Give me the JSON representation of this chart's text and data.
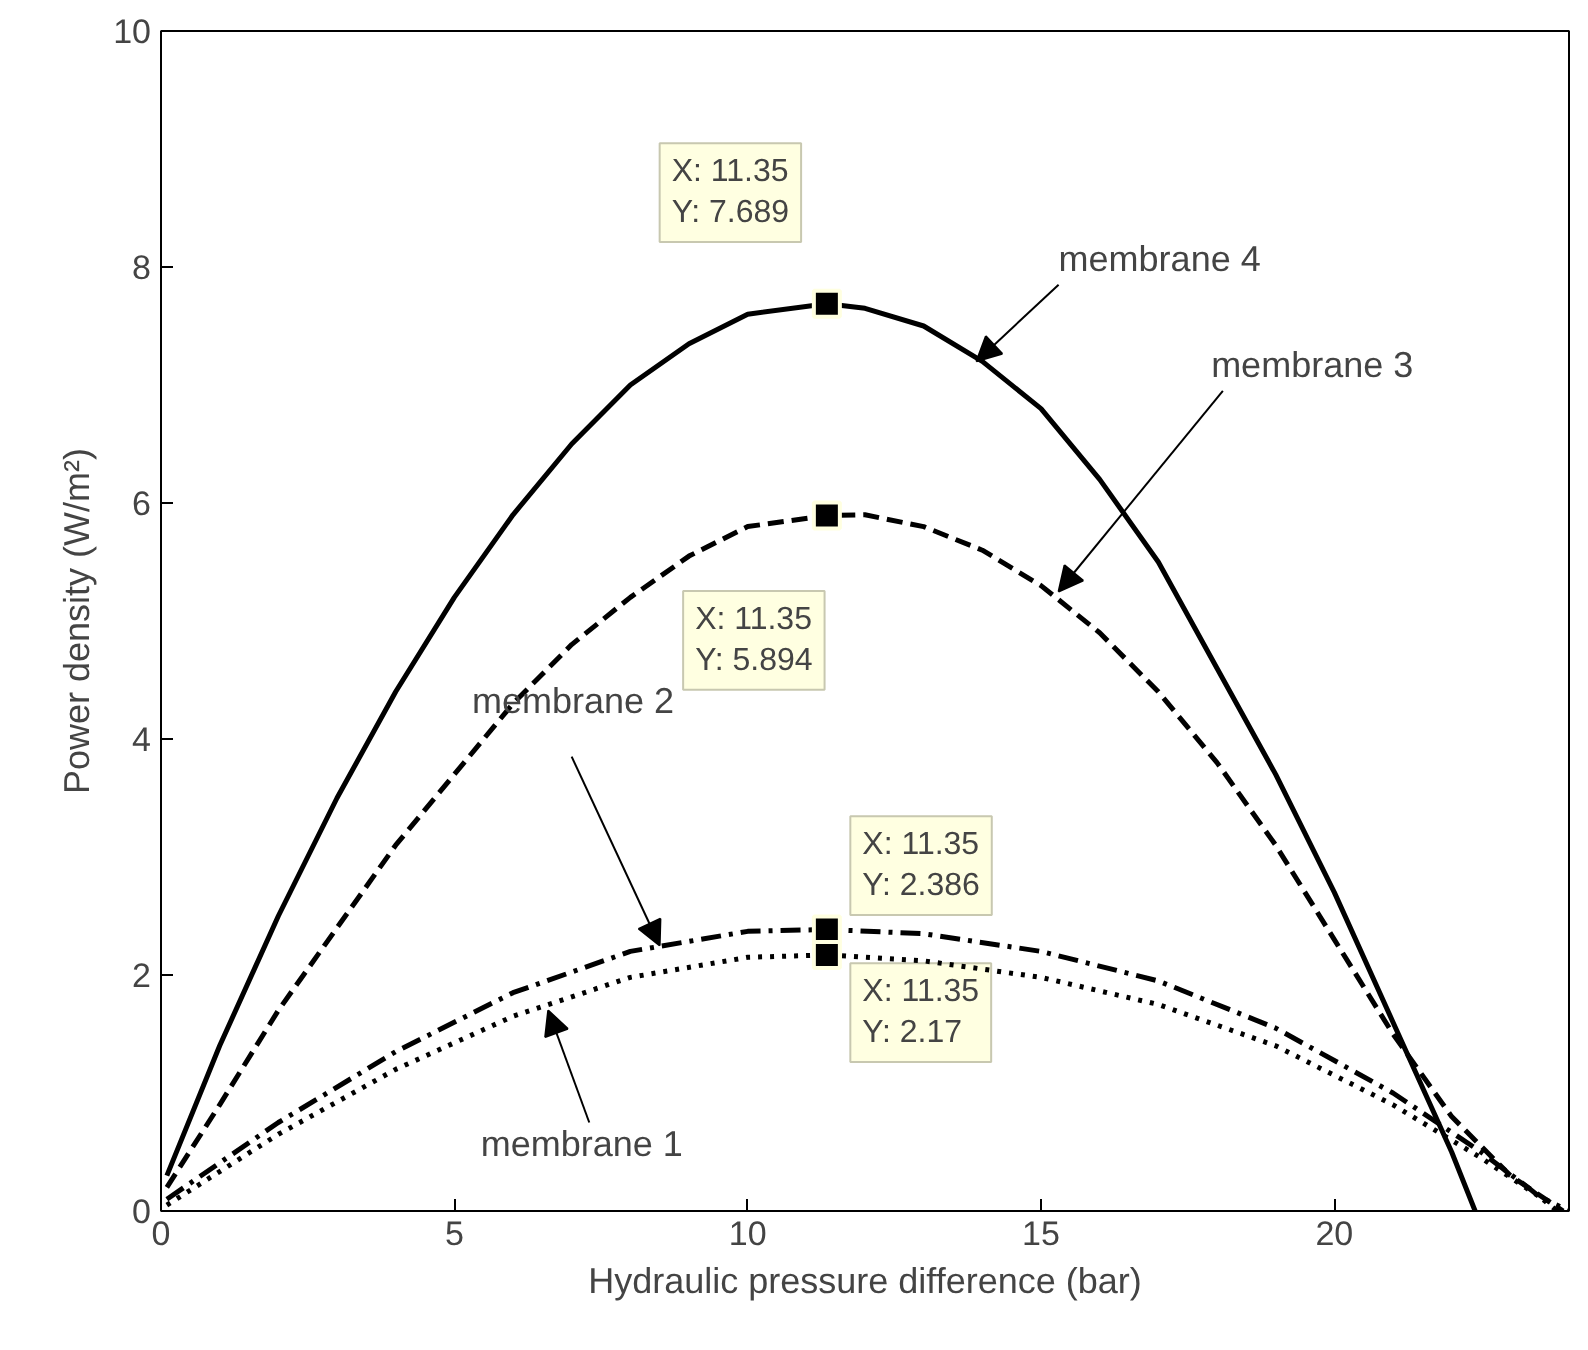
{
  "chart_data": {
    "type": "line",
    "xlabel": "Hydraulic pressure difference (bar)",
    "ylabel": "Power density (W/m²)",
    "xlim": [
      0,
      24
    ],
    "ylim": [
      0,
      10
    ],
    "xticks": [
      0,
      5,
      10,
      15,
      20
    ],
    "yticks": [
      0,
      2,
      4,
      6,
      8,
      10
    ],
    "grid": false,
    "marker": "none",
    "series": [
      {
        "name": "membrane 4",
        "color": "#000000",
        "line_style": "solid",
        "x": [
          0.1,
          1,
          2,
          3,
          4,
          5,
          6,
          7,
          8,
          9,
          10,
          11.35,
          12,
          13,
          14,
          15,
          16,
          17,
          18,
          19,
          20,
          21,
          22,
          22.4
        ],
        "values": [
          0.3,
          1.4,
          2.5,
          3.5,
          4.4,
          5.2,
          5.9,
          6.5,
          7.0,
          7.35,
          7.6,
          7.689,
          7.65,
          7.5,
          7.2,
          6.8,
          6.2,
          5.5,
          4.6,
          3.7,
          2.7,
          1.6,
          0.5,
          0
        ],
        "value_labels": [
          null,
          null,
          null,
          null,
          null,
          null,
          null,
          null,
          null,
          null,
          null,
          "X: 11.35\nY: 7.689",
          null,
          null,
          null,
          null,
          null,
          null,
          null,
          null,
          null,
          null,
          null,
          null
        ]
      },
      {
        "name": "membrane 3",
        "color": "#000000",
        "line_style": "dashed",
        "x": [
          0.1,
          1,
          2,
          3,
          4,
          5,
          6,
          7,
          8,
          9,
          10,
          11.35,
          12,
          13,
          14,
          15,
          16,
          17,
          18,
          19,
          20,
          21,
          22,
          23,
          23.9
        ],
        "values": [
          0.2,
          0.9,
          1.7,
          2.4,
          3.1,
          3.7,
          4.3,
          4.8,
          5.2,
          5.55,
          5.8,
          5.894,
          5.9,
          5.8,
          5.6,
          5.3,
          4.9,
          4.4,
          3.8,
          3.1,
          2.3,
          1.5,
          0.8,
          0.3,
          0
        ],
        "value_labels": [
          null,
          null,
          null,
          null,
          null,
          null,
          null,
          null,
          null,
          null,
          null,
          "X: 11.35\nY: 5.894",
          null,
          null,
          null,
          null,
          null,
          null,
          null,
          null,
          null,
          null,
          null,
          null,
          null
        ]
      },
      {
        "name": "membrane 2",
        "color": "#000000",
        "line_style": "dashdot",
        "x": [
          0.1,
          2,
          4,
          6,
          8,
          10,
          11.35,
          13,
          15,
          17,
          19,
          21,
          22.5,
          23.3,
          23.8
        ],
        "values": [
          0.1,
          0.75,
          1.35,
          1.85,
          2.2,
          2.37,
          2.386,
          2.35,
          2.2,
          1.95,
          1.55,
          1.0,
          0.5,
          0.2,
          0
        ],
        "value_labels": [
          null,
          null,
          null,
          null,
          null,
          null,
          "X: 11.35\nY: 2.386",
          null,
          null,
          null,
          null,
          null,
          null,
          null,
          null
        ]
      },
      {
        "name": "membrane 1",
        "color": "#000000",
        "line_style": "dotted",
        "x": [
          0.1,
          2,
          4,
          6,
          8,
          10,
          11.35,
          13,
          15,
          17,
          19,
          21,
          22.5,
          23.5,
          24
        ],
        "values": [
          0.05,
          0.65,
          1.2,
          1.65,
          1.98,
          2.15,
          2.17,
          2.12,
          1.98,
          1.75,
          1.4,
          0.9,
          0.45,
          0.12,
          0
        ],
        "value_labels": [
          null,
          null,
          null,
          null,
          null,
          null,
          "X: 11.35\nY: 2.17",
          null,
          null,
          null,
          null,
          null,
          null,
          null,
          null
        ]
      }
    ]
  }
}
